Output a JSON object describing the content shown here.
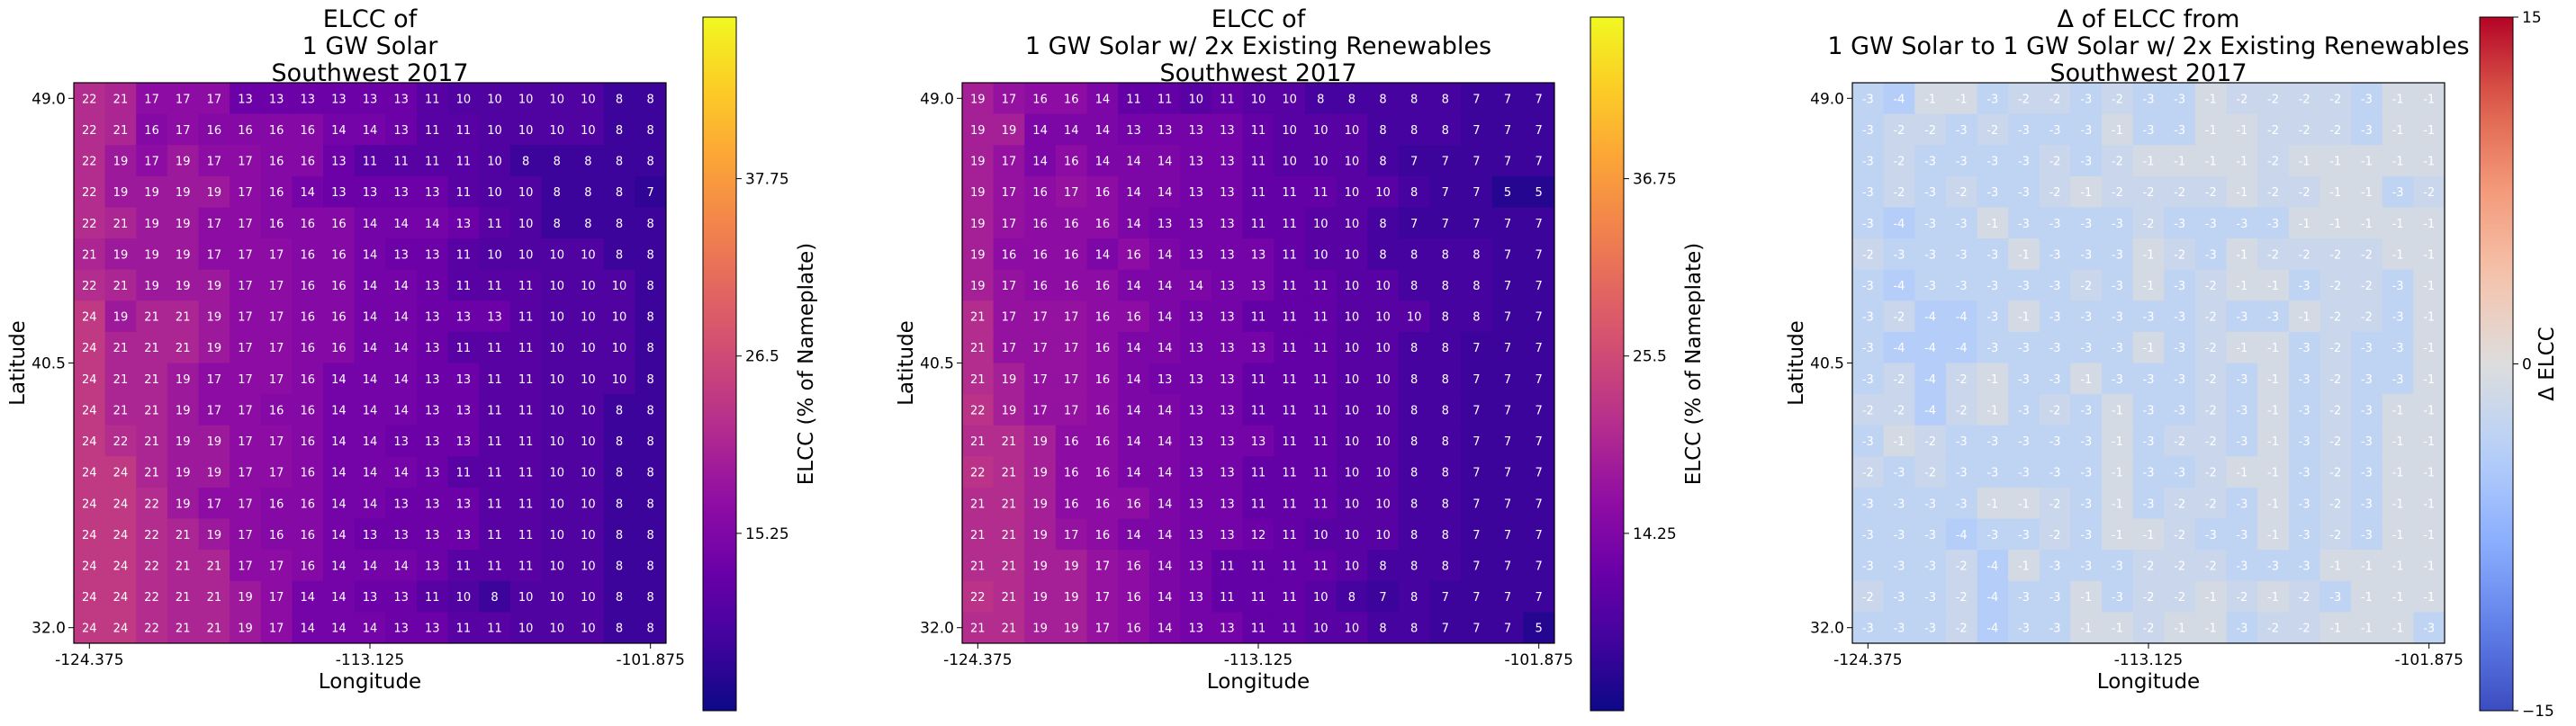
{
  "chart_data": [
    {
      "type": "heatmap",
      "title": "ELCC of\n1 GW Solar\nSouthwest 2017",
      "xlabel": "Longitude",
      "ylabel": "Latitude",
      "xticks": [
        "-124.375",
        "-113.125",
        "-101.875"
      ],
      "yticks": [
        "49.0",
        "40.5",
        "32.0"
      ],
      "colormap": "plasma",
      "colorbar": {
        "label": "ELCC (% of Nameplate)",
        "range": [
          4,
          48
        ],
        "ticks": [
          "37.75",
          "26.5",
          "15.25"
        ],
        "tick_values": [
          37.75,
          26.5,
          15.25
        ]
      },
      "rows": [
        [
          22,
          21,
          17,
          17,
          17,
          13,
          13,
          13,
          13,
          13,
          13,
          11,
          10,
          10,
          10,
          10,
          10,
          8,
          8
        ],
        [
          22,
          21,
          16,
          17,
          16,
          16,
          16,
          16,
          14,
          14,
          13,
          11,
          11,
          10,
          10,
          10,
          10,
          8,
          8
        ],
        [
          22,
          19,
          17,
          19,
          17,
          17,
          16,
          16,
          13,
          11,
          11,
          11,
          11,
          10,
          8,
          8,
          8,
          8,
          8
        ],
        [
          22,
          19,
          19,
          19,
          19,
          17,
          16,
          14,
          13,
          13,
          13,
          13,
          11,
          10,
          10,
          8,
          8,
          8,
          7
        ],
        [
          22,
          21,
          19,
          19,
          17,
          17,
          16,
          16,
          16,
          14,
          14,
          14,
          13,
          11,
          10,
          8,
          8,
          8,
          8
        ],
        [
          21,
          19,
          19,
          19,
          17,
          17,
          17,
          16,
          16,
          14,
          13,
          13,
          11,
          10,
          10,
          10,
          10,
          8,
          8
        ],
        [
          22,
          21,
          19,
          19,
          19,
          17,
          17,
          16,
          16,
          14,
          14,
          13,
          11,
          11,
          11,
          10,
          10,
          10,
          8
        ],
        [
          24,
          19,
          21,
          21,
          19,
          17,
          17,
          16,
          16,
          14,
          14,
          13,
          13,
          13,
          11,
          10,
          10,
          10,
          8
        ],
        [
          24,
          21,
          21,
          21,
          19,
          17,
          17,
          16,
          16,
          14,
          14,
          13,
          11,
          11,
          11,
          10,
          10,
          10,
          8
        ],
        [
          24,
          21,
          21,
          19,
          17,
          17,
          17,
          16,
          14,
          14,
          14,
          13,
          13,
          11,
          11,
          10,
          10,
          10,
          8
        ],
        [
          24,
          21,
          21,
          19,
          17,
          17,
          16,
          16,
          14,
          14,
          14,
          13,
          13,
          11,
          11,
          10,
          10,
          8,
          8
        ],
        [
          24,
          22,
          21,
          19,
          19,
          17,
          17,
          16,
          14,
          14,
          13,
          13,
          13,
          11,
          11,
          10,
          10,
          8,
          8
        ],
        [
          24,
          24,
          21,
          19,
          19,
          17,
          17,
          16,
          14,
          14,
          14,
          13,
          11,
          11,
          11,
          10,
          10,
          8,
          8
        ],
        [
          24,
          24,
          22,
          19,
          17,
          17,
          16,
          16,
          14,
          14,
          13,
          13,
          13,
          11,
          11,
          10,
          10,
          8,
          8
        ],
        [
          24,
          24,
          22,
          21,
          19,
          17,
          16,
          16,
          14,
          13,
          13,
          13,
          13,
          11,
          11,
          10,
          10,
          8,
          8
        ],
        [
          24,
          24,
          22,
          21,
          21,
          17,
          17,
          16,
          14,
          14,
          14,
          13,
          11,
          11,
          11,
          10,
          10,
          8,
          8
        ],
        [
          24,
          24,
          22,
          21,
          21,
          19,
          17,
          14,
          14,
          13,
          13,
          11,
          10,
          8,
          10,
          10,
          10,
          8,
          8
        ],
        [
          24,
          24,
          22,
          21,
          21,
          19,
          17,
          14,
          14,
          14,
          13,
          13,
          11,
          11,
          10,
          10,
          10,
          8,
          8
        ]
      ]
    },
    {
      "type": "heatmap",
      "title": "ELCC of\n1 GW Solar w/ 2x Existing Renewables\nSouthwest 2017",
      "xlabel": "Longitude",
      "ylabel": "Latitude",
      "xticks": [
        "-124.375",
        "-113.125",
        "-101.875"
      ],
      "yticks": [
        "49.0",
        "40.5",
        "32.0"
      ],
      "colormap": "plasma",
      "colorbar": {
        "label": "ELCC (% of Nameplate)",
        "range": [
          3,
          47
        ],
        "ticks": [
          "36.75",
          "25.5",
          "14.25"
        ],
        "tick_values": [
          36.75,
          25.5,
          14.25
        ]
      },
      "rows": [
        [
          19,
          17,
          16,
          16,
          14,
          11,
          11,
          10,
          11,
          10,
          10,
          8,
          8,
          8,
          8,
          8,
          7,
          7,
          7
        ],
        [
          19,
          19,
          14,
          14,
          14,
          13,
          13,
          13,
          13,
          11,
          10,
          10,
          10,
          8,
          8,
          8,
          7,
          7,
          7
        ],
        [
          19,
          17,
          14,
          16,
          14,
          14,
          14,
          13,
          13,
          11,
          10,
          10,
          10,
          8,
          7,
          7,
          7,
          7,
          7
        ],
        [
          19,
          17,
          16,
          17,
          16,
          14,
          14,
          13,
          13,
          11,
          11,
          11,
          10,
          10,
          8,
          7,
          7,
          5,
          5
        ],
        [
          19,
          17,
          16,
          16,
          16,
          14,
          13,
          13,
          13,
          11,
          11,
          10,
          10,
          8,
          7,
          7,
          7,
          7,
          7
        ],
        [
          19,
          16,
          16,
          16,
          14,
          16,
          14,
          13,
          13,
          13,
          11,
          10,
          10,
          8,
          8,
          8,
          8,
          7,
          7
        ],
        [
          19,
          17,
          16,
          16,
          16,
          14,
          14,
          14,
          13,
          13,
          11,
          11,
          10,
          10,
          8,
          8,
          8,
          7,
          7
        ],
        [
          21,
          17,
          17,
          17,
          16,
          16,
          14,
          13,
          13,
          11,
          11,
          11,
          10,
          10,
          10,
          8,
          8,
          7,
          7
        ],
        [
          21,
          17,
          17,
          17,
          16,
          14,
          14,
          13,
          13,
          13,
          11,
          11,
          10,
          10,
          8,
          8,
          7,
          7,
          7
        ],
        [
          21,
          19,
          17,
          17,
          16,
          14,
          13,
          13,
          13,
          11,
          11,
          11,
          10,
          10,
          8,
          8,
          7,
          7,
          7
        ],
        [
          22,
          19,
          17,
          17,
          16,
          14,
          14,
          13,
          13,
          11,
          11,
          11,
          10,
          10,
          8,
          8,
          7,
          7,
          7
        ],
        [
          21,
          21,
          19,
          16,
          16,
          14,
          14,
          13,
          13,
          13,
          11,
          11,
          10,
          10,
          8,
          8,
          7,
          7,
          7
        ],
        [
          22,
          21,
          19,
          16,
          16,
          14,
          14,
          13,
          13,
          11,
          11,
          11,
          10,
          10,
          8,
          8,
          7,
          7,
          7
        ],
        [
          21,
          21,
          19,
          16,
          16,
          16,
          14,
          13,
          13,
          11,
          11,
          11,
          10,
          10,
          8,
          8,
          7,
          7,
          7
        ],
        [
          21,
          21,
          19,
          17,
          16,
          14,
          14,
          13,
          13,
          12,
          11,
          10,
          10,
          10,
          8,
          8,
          7,
          7,
          7
        ],
        [
          21,
          21,
          19,
          19,
          17,
          16,
          14,
          13,
          11,
          11,
          11,
          11,
          10,
          8,
          8,
          8,
          7,
          7,
          7
        ],
        [
          22,
          21,
          19,
          19,
          17,
          16,
          14,
          13,
          11,
          11,
          11,
          10,
          8,
          7,
          8,
          7,
          7,
          7,
          7
        ],
        [
          21,
          21,
          19,
          19,
          17,
          16,
          14,
          13,
          13,
          11,
          11,
          10,
          10,
          8,
          8,
          7,
          7,
          7,
          5
        ]
      ]
    },
    {
      "type": "heatmap",
      "title": "Δ of ELCC from\n1 GW Solar to 1 GW Solar w/ 2x Existing Renewables\nSouthwest 2017",
      "xlabel": "Longitude",
      "ylabel": "Latitude",
      "xticks": [
        "-124.375",
        "-113.125",
        "-101.875"
      ],
      "yticks": [
        "49.0",
        "40.5",
        "32.0"
      ],
      "colormap": "coolwarm",
      "colorbar": {
        "label": "Δ ELCC",
        "range": [
          -15,
          15
        ],
        "ticks": [
          "15",
          "0",
          "−15"
        ],
        "tick_values": [
          15,
          0,
          -15
        ]
      },
      "rows": [
        [
          -3,
          -4,
          -1,
          -1,
          -3,
          -2,
          -2,
          -3,
          -2,
          -3,
          -3,
          -1,
          -2,
          -2,
          -2,
          -2,
          -3,
          -1,
          -1
        ],
        [
          -3,
          -2,
          -2,
          -3,
          -2,
          -3,
          -3,
          -3,
          -1,
          -3,
          -3,
          -1,
          -1,
          -2,
          -2,
          -2,
          -3,
          -1,
          -1
        ],
        [
          -3,
          -2,
          -3,
          -3,
          -3,
          -3,
          -2,
          -3,
          -2,
          -1,
          -1,
          -1,
          -1,
          -2,
          -1,
          -1,
          -1,
          -1,
          -1
        ],
        [
          -3,
          -2,
          -3,
          -2,
          -3,
          -3,
          -2,
          -1,
          -2,
          -2,
          -2,
          -2,
          -1,
          -2,
          -2,
          -1,
          -1,
          -3,
          -2
        ],
        [
          -3,
          -4,
          -3,
          -3,
          -1,
          -3,
          -3,
          -3,
          -3,
          -2,
          -3,
          -3,
          -3,
          -3,
          -1,
          -1,
          -1,
          -1,
          -1
        ],
        [
          -2,
          -3,
          -3,
          -3,
          -3,
          -1,
          -3,
          -3,
          -3,
          -1,
          -2,
          -3,
          -1,
          -2,
          -2,
          -2,
          -2,
          -1,
          -1
        ],
        [
          -3,
          -4,
          -3,
          -3,
          -3,
          -3,
          -3,
          -2,
          -3,
          -1,
          -3,
          -2,
          -1,
          -1,
          -3,
          -2,
          -2,
          -3,
          -1
        ],
        [
          -3,
          -2,
          -4,
          -4,
          -3,
          -1,
          -3,
          -3,
          -3,
          -3,
          -3,
          -2,
          -3,
          -3,
          -1,
          -2,
          -2,
          -3,
          -1
        ],
        [
          -3,
          -4,
          -4,
          -4,
          -3,
          -3,
          -3,
          -3,
          -3,
          -1,
          -3,
          -2,
          -1,
          -1,
          -3,
          -2,
          -3,
          -3,
          -1
        ],
        [
          -3,
          -2,
          -4,
          -2,
          -1,
          -3,
          -3,
          -1,
          -3,
          -3,
          -3,
          -2,
          -3,
          -1,
          -3,
          -2,
          -3,
          -3,
          -1
        ],
        [
          -2,
          -2,
          -4,
          -2,
          -1,
          -3,
          -2,
          -3,
          -1,
          -3,
          -3,
          -2,
          -3,
          -1,
          -3,
          -2,
          -3,
          -1,
          -1
        ],
        [
          -3,
          -1,
          -2,
          -3,
          -3,
          -3,
          -3,
          -3,
          -1,
          -3,
          -2,
          -2,
          -3,
          -1,
          -3,
          -2,
          -3,
          -1,
          -1
        ],
        [
          -2,
          -3,
          -2,
          -3,
          -3,
          -3,
          -3,
          -3,
          -1,
          -3,
          -3,
          -2,
          -1,
          -1,
          -3,
          -2,
          -3,
          -1,
          -1
        ],
        [
          -3,
          -3,
          -3,
          -3,
          -1,
          -1,
          -2,
          -3,
          -1,
          -3,
          -2,
          -2,
          -3,
          -1,
          -3,
          -2,
          -3,
          -1,
          -1
        ],
        [
          -3,
          -3,
          -3,
          -4,
          -3,
          -3,
          -2,
          -3,
          -1,
          -1,
          -2,
          -3,
          -3,
          -1,
          -3,
          -2,
          -3,
          -1,
          -1
        ],
        [
          -3,
          -3,
          -3,
          -2,
          -4,
          -1,
          -3,
          -3,
          -3,
          -2,
          -2,
          -2,
          -3,
          -3,
          -3,
          -1,
          -1,
          -1,
          -1
        ],
        [
          -2,
          -3,
          -3,
          -2,
          -4,
          -3,
          -3,
          -1,
          -3,
          -2,
          -2,
          -1,
          -2,
          -1,
          -2,
          -3,
          -1,
          -1,
          -1
        ],
        [
          -3,
          -3,
          -3,
          -2,
          -4,
          -3,
          -3,
          -1,
          -1,
          -2,
          -1,
          -1,
          -3,
          -2,
          -2,
          -1,
          -1,
          -1,
          -3
        ]
      ]
    }
  ]
}
